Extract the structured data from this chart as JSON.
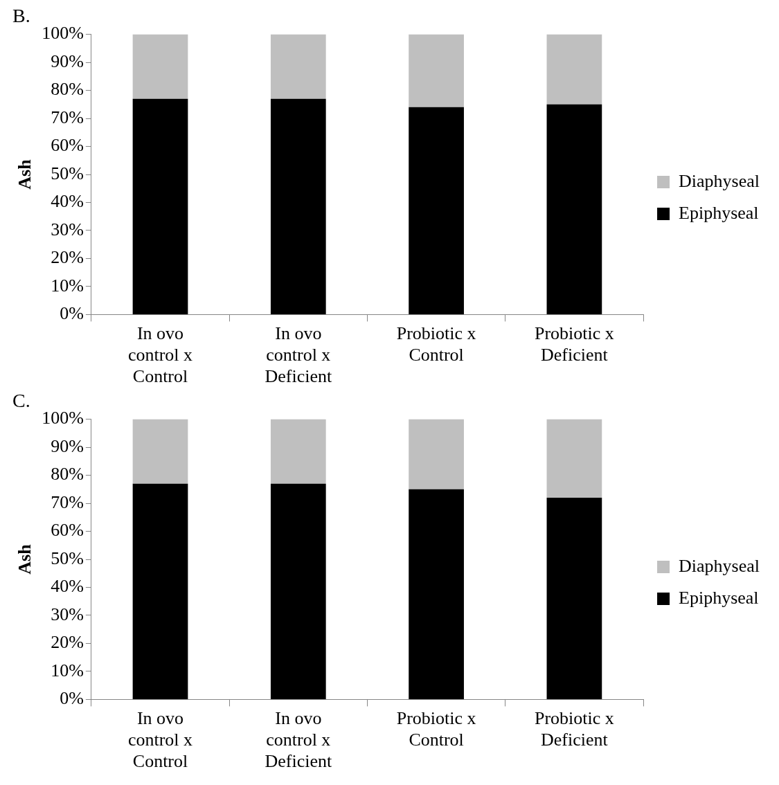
{
  "chart_data": [
    {
      "type": "bar",
      "title": "B.",
      "ylabel": "Ash",
      "stacked": true,
      "legend": "right",
      "grid": false,
      "categories": [
        "In ovo control x Control",
        "In ovo control x Deficient",
        "Probiotic x Control",
        "Probiotic x Deficient"
      ],
      "ylim": [
        0,
        100
      ],
      "yticks": [
        {
          "value": 0,
          "label": "0%"
        },
        {
          "value": 10,
          "label": "10%"
        },
        {
          "value": 20,
          "label": "20%"
        },
        {
          "value": 30,
          "label": "30%"
        },
        {
          "value": 40,
          "label": "40%"
        },
        {
          "value": 50,
          "label": "50%"
        },
        {
          "value": 60,
          "label": "60%"
        },
        {
          "value": 70,
          "label": "70%"
        },
        {
          "value": 80,
          "label": "80%"
        },
        {
          "value": 90,
          "label": "90%"
        },
        {
          "value": 100,
          "label": "100%"
        }
      ],
      "series": [
        {
          "name": "Epiphyseal",
          "color": "#000000",
          "values": [
            77,
            77,
            74,
            75
          ]
        },
        {
          "name": "Diaphyseal",
          "color": "#bfbfbf",
          "values": [
            23,
            23,
            26,
            25
          ]
        }
      ]
    },
    {
      "type": "bar",
      "title": "C.",
      "ylabel": "Ash",
      "stacked": true,
      "legend": "right",
      "grid": false,
      "categories": [
        "In ovo control x Control",
        "In ovo control x Deficient",
        "Probiotic x Control",
        "Probiotic x Deficient"
      ],
      "ylim": [
        0,
        100
      ],
      "yticks": [
        {
          "value": 0,
          "label": "0%"
        },
        {
          "value": 10,
          "label": "10%"
        },
        {
          "value": 20,
          "label": "20%"
        },
        {
          "value": 30,
          "label": "30%"
        },
        {
          "value": 40,
          "label": "40%"
        },
        {
          "value": 50,
          "label": "50%"
        },
        {
          "value": 60,
          "label": "60%"
        },
        {
          "value": 70,
          "label": "70%"
        },
        {
          "value": 80,
          "label": "80%"
        },
        {
          "value": 90,
          "label": "90%"
        },
        {
          "value": 100,
          "label": "100%"
        }
      ],
      "series": [
        {
          "name": "Epiphyseal",
          "color": "#000000",
          "values": [
            77,
            77,
            75,
            72
          ]
        },
        {
          "name": "Diaphyseal",
          "color": "#bfbfbf",
          "values": [
            23,
            23,
            25,
            28
          ]
        }
      ]
    }
  ]
}
